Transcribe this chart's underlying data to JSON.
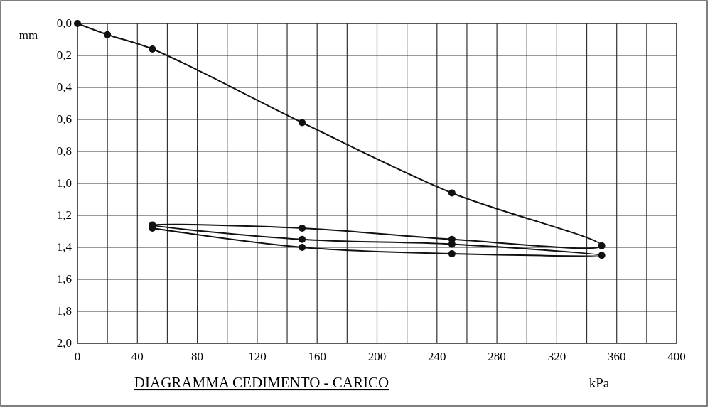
{
  "chart_data": {
    "type": "line",
    "title": "DIAGRAMMA  CEDIMENTO - CARICO",
    "xlabel": "kPa",
    "ylabel": "mm",
    "series": [
      {
        "color": "#111111",
        "x": [
          0,
          20,
          50,
          150,
          250,
          350,
          250,
          150,
          50,
          150,
          250,
          350,
          250,
          150,
          50
        ],
        "values": [
          0,
          0.07,
          0.16,
          0.62,
          1.06,
          1.39,
          1.35,
          1.28,
          1.26,
          1.35,
          1.38,
          1.45,
          1.44,
          1.4,
          1.28
        ]
      }
    ],
    "xlim": [
      0,
      400
    ],
    "ylim": [
      2.0,
      0.0
    ],
    "xticks": [
      0,
      {
        "value": 20,
        "label": null
      },
      40,
      {
        "value": 60,
        "label": null
      },
      80,
      {
        "value": 100,
        "label": null
      },
      120,
      {
        "value": 140,
        "label": null
      },
      160,
      {
        "value": 180,
        "label": null
      },
      200,
      {
        "value": 220,
        "label": null
      },
      240,
      {
        "value": 260,
        "label": null
      },
      280,
      {
        "value": 300,
        "label": null
      },
      320,
      {
        "value": 340,
        "label": null
      },
      360,
      {
        "value": 380,
        "label": null
      },
      400
    ],
    "yticks": [
      {
        "value": 0,
        "label": "0,0"
      },
      {
        "value": 0.2,
        "label": "0,2"
      },
      {
        "value": 0.4,
        "label": "0,4"
      },
      {
        "value": 0.6,
        "label": "0,6"
      },
      {
        "value": 0.8,
        "label": "0,8"
      },
      {
        "value": 1.0,
        "label": "1,0"
      },
      {
        "value": 1.2,
        "label": "1,2"
      },
      {
        "value": 1.4,
        "label": "1,4"
      },
      {
        "value": 1.6,
        "label": "1,6"
      },
      {
        "value": 1.8,
        "label": "1,8"
      },
      {
        "value": 2.0,
        "label": "2,0"
      }
    ],
    "grid": true,
    "marker": "circle",
    "line_style": "solid"
  }
}
